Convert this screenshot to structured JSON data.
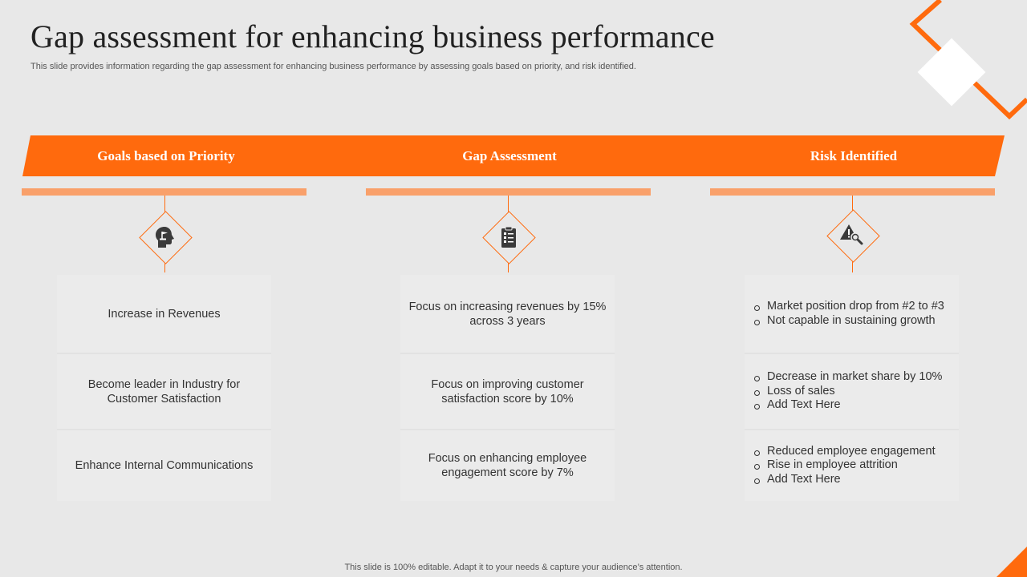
{
  "title": "Gap assessment for enhancing business performance",
  "subtitle": "This slide provides information regarding the gap assessment for enhancing business performance by assessing goals based on priority, and risk identified.",
  "columns": [
    {
      "heading": "Goals based on Priority",
      "icon": "head-goal-icon"
    },
    {
      "heading": "Gap Assessment",
      "icon": "checklist-clipboard-icon"
    },
    {
      "heading": "Risk Identified",
      "icon": "warning-magnifier-icon"
    }
  ],
  "goals": [
    "Increase in Revenues",
    "Become leader in Industry for Customer Satisfaction",
    "Enhance Internal Communications"
  ],
  "gaps": [
    "Focus on increasing revenues by 15% across 3 years",
    "Focus on improving customer satisfaction score by 10%",
    "Focus on enhancing employee engagement score by 7%"
  ],
  "risks": [
    [
      "Market position drop from #2 to #3",
      "Not capable in sustaining growth"
    ],
    [
      "Decrease in market share by 10%",
      "Loss of sales",
      "Add Text Here"
    ],
    [
      "Reduced employee engagement",
      "Rise in employee attrition",
      "Add Text Here"
    ]
  ],
  "footer": "This slide is 100% editable. Adapt it to your needs & capture your audience’s attention.",
  "colors": {
    "accent": "#ff6a0d",
    "accent_light": "#f9a06a",
    "background": "#e8e8e8",
    "card": "#ebebeb"
  }
}
